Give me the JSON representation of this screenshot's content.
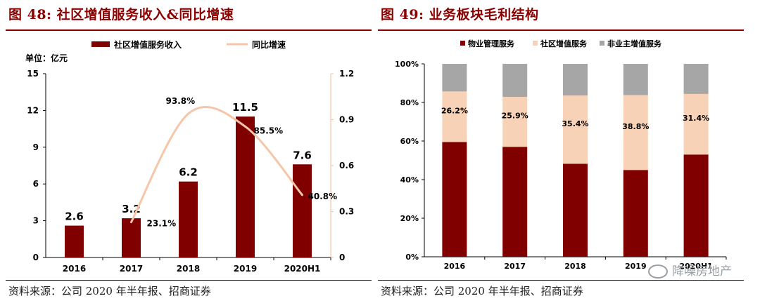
{
  "left": {
    "title": "图 48:  社区增值服务收入&同比增速",
    "source": "资料来源：公司 2020 年半年报、招商证券",
    "unit_label": "单位：亿元"
  },
  "right": {
    "title": "图 49:  业务板块毛利结构",
    "source": "资料来源：公司 2020 年半年报、招商证券"
  },
  "watermark": "降噪房地产",
  "colors": {
    "accent": "#8b0000",
    "bar": "#800000",
    "line": "#f6c6a8",
    "peach": "#f8d2b6",
    "gray": "#a6a6a6"
  },
  "chart_data": [
    {
      "type": "bar",
      "title": "社区增值服务收入&同比增速",
      "categories": [
        "2016",
        "2017",
        "2018",
        "2019",
        "2020H1"
      ],
      "series": [
        {
          "name": "社区增值服务收入",
          "kind": "bar",
          "axis": "left",
          "values": [
            2.6,
            3.2,
            6.2,
            11.5,
            7.6
          ],
          "labels": [
            "2.6",
            "3.2",
            "6.2",
            "11.5",
            "7.6"
          ]
        },
        {
          "name": "同比增速",
          "kind": "line",
          "axis": "right",
          "values": [
            null,
            0.231,
            0.938,
            0.855,
            0.408
          ],
          "labels": [
            "",
            "23.1%",
            "93.8%",
            "85.5%",
            "40.8%"
          ]
        }
      ],
      "ylim_left": [
        0,
        15
      ],
      "yticks_left": [
        0,
        3,
        6,
        9,
        12,
        15
      ],
      "ytick_labels_left": [
        "0",
        "3",
        "6",
        "9",
        "12",
        "15"
      ],
      "ylim_right": [
        0,
        1.2
      ],
      "yticks_right": [
        0,
        0.3,
        0.6,
        0.9,
        1.2
      ],
      "ytick_labels_right": [
        "0",
        "0.3",
        "0.6",
        "0.9",
        "1.2"
      ],
      "ylabel": "单位：亿元",
      "legend": "top"
    },
    {
      "type": "bar",
      "stacked": true,
      "title": "业务板块毛利结构",
      "categories": [
        "2016",
        "2017",
        "2018",
        "2019",
        "2020H1"
      ],
      "series": [
        {
          "name": "物业管理服务",
          "values": [
            59.5,
            57.0,
            48.2,
            45.0,
            53.0
          ]
        },
        {
          "name": "社区增值服务",
          "values": [
            26.2,
            25.9,
            35.4,
            38.8,
            31.4
          ],
          "labels": [
            "26.2%",
            "25.9%",
            "35.4%",
            "38.8%",
            "31.4%"
          ]
        },
        {
          "name": "非业主增值服务",
          "values": [
            14.3,
            17.1,
            16.4,
            16.2,
            15.6
          ]
        }
      ],
      "ylim": [
        0,
        100
      ],
      "yticks": [
        0,
        20,
        40,
        60,
        80,
        100
      ],
      "ytick_labels": [
        "0%",
        "20%",
        "40%",
        "60%",
        "80%",
        "100%"
      ],
      "legend": "top"
    }
  ]
}
